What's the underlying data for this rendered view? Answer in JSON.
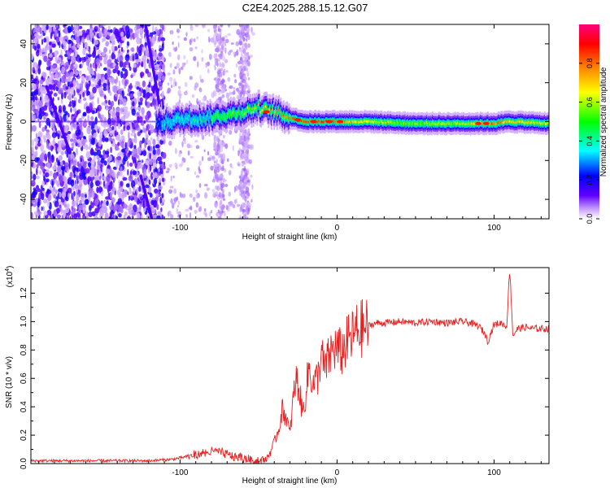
{
  "page_title": "C2E4.2025.288.15.12.G07",
  "chart_data": [
    {
      "type": "heatmap",
      "title": "C2E4.2025.288.15.12.G07",
      "xlabel": "Height of straight line (km)",
      "ylabel": "Frequency (Hz)",
      "xlim": [
        -195,
        135
      ],
      "ylim": [
        -50,
        50
      ],
      "x_ticks": [
        -100,
        0,
        100
      ],
      "x_tick_labels": [
        "-100",
        "0",
        "100"
      ],
      "y_ticks": [
        -40,
        -20,
        0,
        20,
        40
      ],
      "y_tick_labels": [
        "-40",
        "-20",
        "0",
        "20",
        "40"
      ],
      "colorbar": {
        "label": "Normalized spectral amplitude",
        "range": [
          0,
          1
        ],
        "ticks": [
          0.0,
          0.2,
          0.4,
          0.6,
          0.8
        ],
        "tick_labels": [
          "0.0",
          "0.2",
          "0.4",
          "0.6",
          "0.8"
        ],
        "colormap": [
          "#ffffff",
          "#c8a0ff",
          "#6000ff",
          "#0000ff",
          "#00ffff",
          "#00ff00",
          "#ffff00",
          "#ff8000",
          "#ff0000",
          "#ff0080"
        ]
      },
      "ridge": {
        "description_points_x": [
          -115,
          -100,
          -80,
          -60,
          -50,
          -40,
          -30,
          -20,
          -10,
          0,
          20,
          50,
          80,
          100,
          110,
          135
        ],
        "description_points_freq": [
          -1,
          1,
          2,
          5,
          7,
          5,
          2,
          0,
          0,
          0,
          0,
          -1,
          -1,
          -1,
          0,
          -1
        ],
        "description_points_amp": [
          0.3,
          0.4,
          0.45,
          0.55,
          0.65,
          0.75,
          0.8,
          0.85,
          0.85,
          0.8,
          0.6,
          0.55,
          0.6,
          0.8,
          0.7,
          0.6
        ]
      },
      "grid": false
    },
    {
      "type": "line",
      "xlabel": "Height of straight line (km)",
      "ylabel": "SNR (10 * v/v)",
      "y_multiplier_label": "(x10",
      "y_multiplier_exponent": "4",
      "xlim": [
        -195,
        135
      ],
      "ylim": [
        0,
        1.38
      ],
      "x_ticks": [
        -100,
        0,
        100
      ],
      "x_tick_labels": [
        "-100",
        "0",
        "100"
      ],
      "y_ticks": [
        0.0,
        0.2,
        0.4,
        0.6,
        0.8,
        1.0,
        1.2
      ],
      "y_tick_labels": [
        "0.0",
        "0.2",
        "0.4",
        "0.6",
        "0.8",
        "1.0",
        "1.2"
      ],
      "line_color": "#e82020",
      "series": [
        {
          "x": [
            -195,
            -170,
            -140,
            -120,
            -105,
            -95,
            -85,
            -78,
            -72,
            -66,
            -60,
            -55,
            -50,
            -45,
            -43,
            -40,
            -37,
            -35,
            -32,
            -30,
            -28,
            -26,
            -24,
            -22,
            -20,
            -18,
            -15,
            -12,
            -10,
            -8,
            -5,
            -2,
            0,
            3,
            6,
            9,
            12,
            16,
            20,
            25,
            30,
            40,
            50,
            60,
            70,
            80,
            85,
            90,
            94,
            96,
            100,
            105,
            108,
            110,
            112,
            115,
            120,
            125,
            130,
            135
          ],
          "y": [
            0.02,
            0.02,
            0.02,
            0.02,
            0.03,
            0.05,
            0.07,
            0.09,
            0.07,
            0.05,
            0.04,
            0.03,
            0.02,
            0.03,
            0.07,
            0.15,
            0.25,
            0.38,
            0.32,
            0.2,
            0.45,
            0.6,
            0.52,
            0.35,
            0.48,
            0.68,
            0.55,
            0.62,
            0.78,
            0.65,
            0.75,
            0.82,
            0.8,
            0.78,
            0.85,
            0.88,
            0.93,
            0.95,
            0.97,
            0.99,
            0.99,
            1.0,
            0.99,
            1.0,
            0.99,
            1.0,
            0.99,
            0.97,
            0.92,
            0.86,
            0.98,
            0.99,
            0.96,
            1.38,
            0.9,
            0.95,
            0.96,
            0.95,
            0.95,
            0.95
          ]
        }
      ]
    }
  ]
}
